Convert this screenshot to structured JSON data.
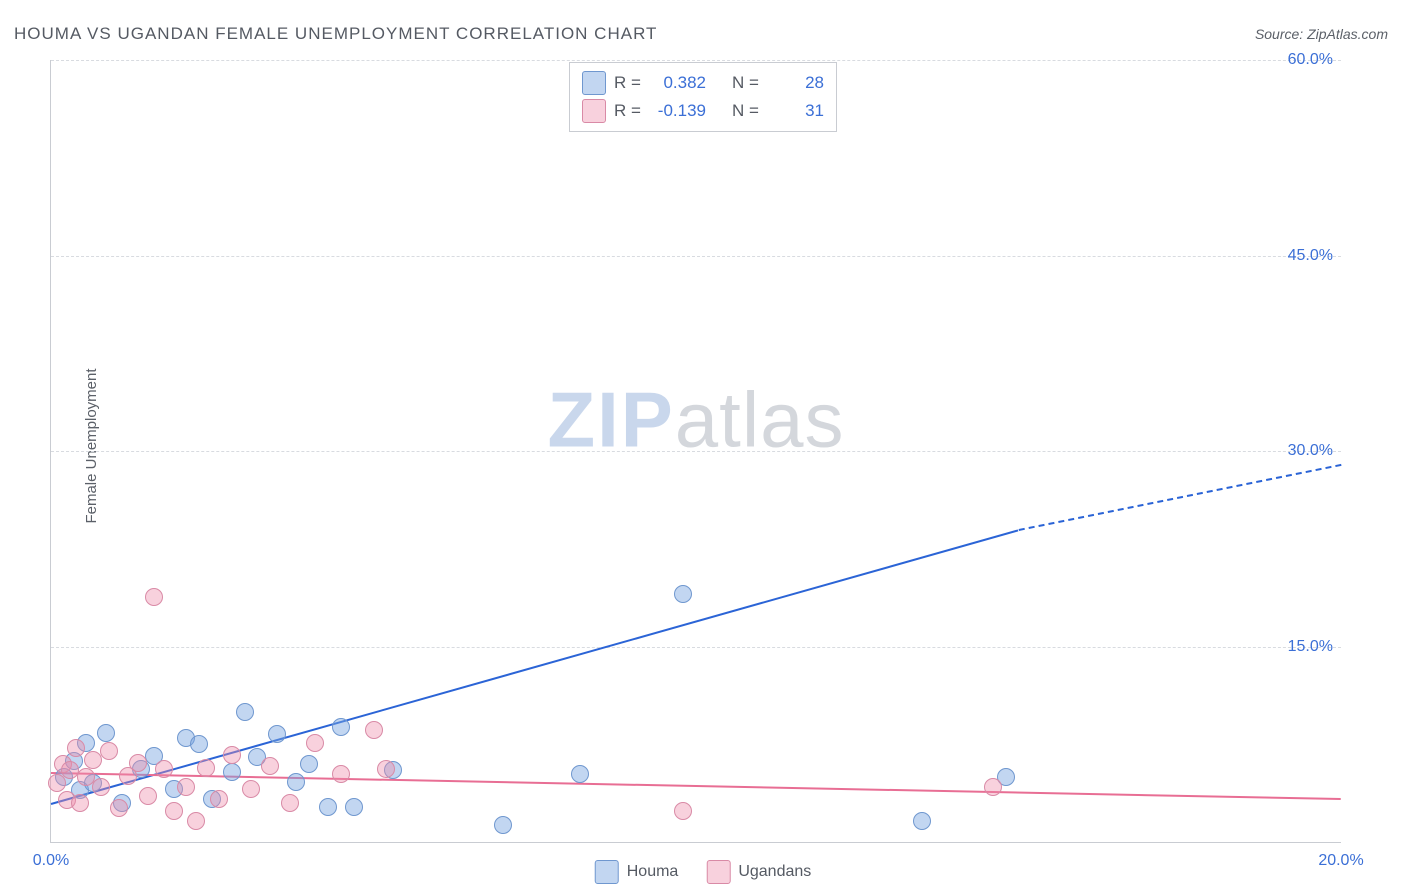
{
  "title": "HOUMA VS UGANDAN FEMALE UNEMPLOYMENT CORRELATION CHART",
  "source": "Source: ZipAtlas.com",
  "ylabel": "Female Unemployment",
  "watermark": {
    "bold": "ZIP",
    "light": "atlas"
  },
  "chart": {
    "type": "scatter",
    "xlim": [
      0,
      20
    ],
    "ylim": [
      0,
      60
    ],
    "yticks": [
      {
        "v": 15,
        "label": "15.0%"
      },
      {
        "v": 30,
        "label": "30.0%"
      },
      {
        "v": 45,
        "label": "45.0%"
      },
      {
        "v": 60,
        "label": "60.0%"
      }
    ],
    "xticks": [
      {
        "v": 0,
        "label": "0.0%"
      },
      {
        "v": 20,
        "label": "20.0%"
      }
    ],
    "background_color": "#ffffff",
    "grid_color": "#d8dbe0",
    "axis_color": "#c9ccd2",
    "tick_label_color": "#3b6fd6",
    "tick_fontsize": 16,
    "marker_radius": 9,
    "marker_border_width": 1.5,
    "series": {
      "houma": {
        "label": "Houma",
        "fill": "rgba(120,165,225,0.45)",
        "stroke": "#6f97cf",
        "points": [
          [
            0.2,
            5.0
          ],
          [
            0.35,
            6.2
          ],
          [
            0.45,
            4.0
          ],
          [
            0.55,
            7.6
          ],
          [
            0.65,
            4.5
          ],
          [
            0.85,
            8.4
          ],
          [
            1.1,
            3.0
          ],
          [
            1.4,
            5.6
          ],
          [
            1.6,
            6.6
          ],
          [
            1.9,
            4.1
          ],
          [
            2.1,
            8.0
          ],
          [
            2.3,
            7.5
          ],
          [
            2.5,
            3.3
          ],
          [
            2.8,
            5.4
          ],
          [
            3.0,
            10.0
          ],
          [
            3.2,
            6.5
          ],
          [
            3.5,
            8.3
          ],
          [
            3.8,
            4.6
          ],
          [
            4.0,
            6.0
          ],
          [
            4.3,
            2.7
          ],
          [
            4.5,
            8.8
          ],
          [
            4.7,
            2.7
          ],
          [
            5.3,
            5.5
          ],
          [
            7.0,
            1.3
          ],
          [
            8.2,
            5.2
          ],
          [
            9.8,
            19.0
          ],
          [
            13.5,
            1.6
          ],
          [
            14.8,
            5.0
          ]
        ]
      },
      "ugandans": {
        "label": "Ugandans",
        "fill": "rgba(238,140,170,0.40)",
        "stroke": "#d98aa6",
        "points": [
          [
            0.1,
            4.5
          ],
          [
            0.18,
            6.0
          ],
          [
            0.25,
            3.2
          ],
          [
            0.3,
            5.5
          ],
          [
            0.38,
            7.2
          ],
          [
            0.45,
            3.0
          ],
          [
            0.55,
            5.0
          ],
          [
            0.65,
            6.3
          ],
          [
            0.78,
            4.2
          ],
          [
            0.9,
            7.0
          ],
          [
            1.05,
            2.6
          ],
          [
            1.2,
            5.1
          ],
          [
            1.35,
            6.1
          ],
          [
            1.5,
            3.5
          ],
          [
            1.6,
            18.8
          ],
          [
            1.75,
            5.6
          ],
          [
            1.9,
            2.4
          ],
          [
            2.1,
            4.2
          ],
          [
            2.25,
            1.6
          ],
          [
            2.4,
            5.7
          ],
          [
            2.6,
            3.3
          ],
          [
            2.8,
            6.7
          ],
          [
            3.1,
            4.1
          ],
          [
            3.4,
            5.8
          ],
          [
            3.7,
            3.0
          ],
          [
            4.1,
            7.6
          ],
          [
            4.5,
            5.2
          ],
          [
            5.0,
            8.6
          ],
          [
            5.2,
            5.6
          ],
          [
            9.8,
            2.4
          ],
          [
            14.6,
            4.2
          ]
        ]
      }
    },
    "trend_lines": {
      "houma": {
        "color": "#2b64d6",
        "width": 2,
        "solid_from": [
          0,
          3.0
        ],
        "solid_to": [
          15.0,
          24.0
        ],
        "dash_to": [
          20.0,
          29.0
        ]
      },
      "ugandans": {
        "color": "#e86e94",
        "width": 2,
        "solid_from": [
          0,
          5.4
        ],
        "solid_to": [
          20.0,
          3.4
        ],
        "dash_to": null
      }
    },
    "legend_top": [
      {
        "series": "houma",
        "R": "0.382",
        "N": "28"
      },
      {
        "series": "ugandans",
        "R": "-0.139",
        "N": "31"
      }
    ],
    "legend_top_labels": {
      "R": "R  =",
      "N": "N  ="
    }
  }
}
